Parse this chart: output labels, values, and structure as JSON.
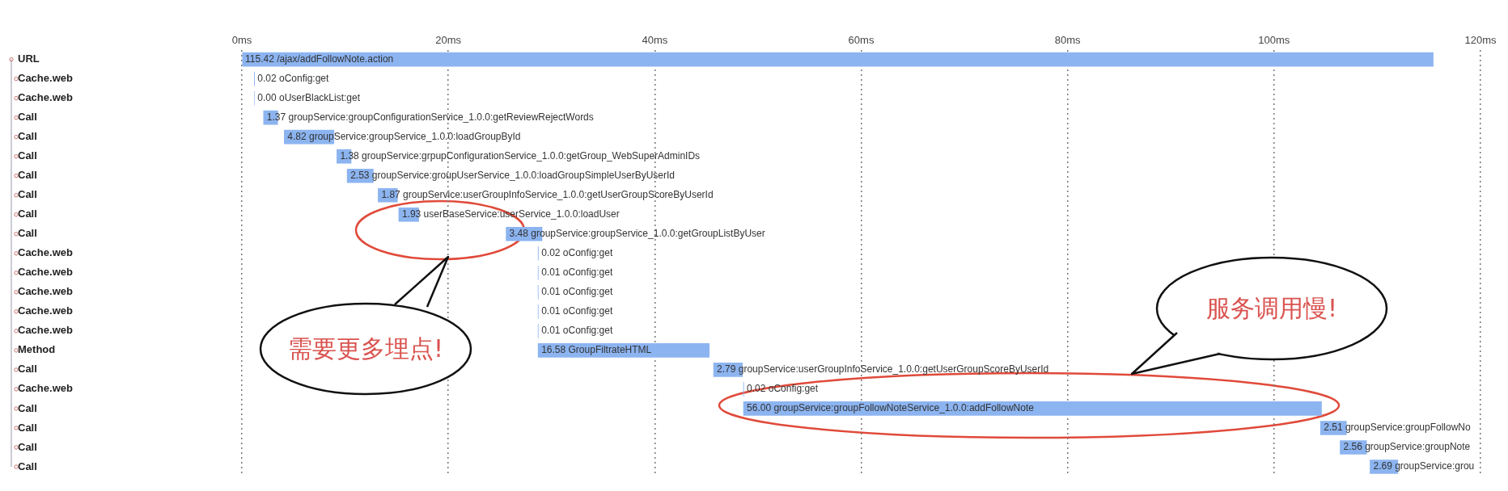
{
  "chart_data": {
    "type": "bar",
    "orientation": "horizontal",
    "color": "#8cb4f0",
    "grid": "x",
    "categories": [
      "URL",
      "Cache.web",
      "Cache.web",
      "Call",
      "Call",
      "Call",
      "Call",
      "Call",
      "Call",
      "Call",
      "Cache.web",
      "Cache.web",
      "Cache.web",
      "Cache.web",
      "Cache.web",
      "Method",
      "Call",
      "Cache.web",
      "Call",
      "Call",
      "Call",
      "Call"
    ],
    "base": [
      0,
      1.2,
      1.2,
      2.1,
      4.1,
      9.2,
      10.2,
      13.2,
      15.2,
      25.6,
      28.7,
      28.7,
      28.7,
      28.7,
      28.7,
      28.7,
      45.7,
      48.6,
      48.6,
      104.5,
      106.4,
      109.3
    ],
    "values": [
      115.42,
      0.02,
      0.0,
      1.37,
      4.82,
      1.38,
      2.53,
      1.87,
      1.93,
      3.48,
      0.02,
      0.01,
      0.01,
      0.01,
      0.01,
      16.58,
      2.79,
      0.02,
      56.0,
      2.51,
      2.56,
      2.69
    ],
    "value_labels": [
      "115.42 /ajax/addFollowNote.action",
      "0.02 oConfig:get",
      "0.00 oUserBlackList:get",
      "1.37 groupService:groupConfigurationService_1.0.0:getReviewRejectWords",
      "4.82 groupService:groupService_1.0.0:loadGroupById",
      "1.38 groupService:grpupConfigurationService_1.0.0:getGroup_WebSuperAdminIDs",
      "2.53 groupService:groupUserService_1.0.0:loadGroupSimpleUserByUserId",
      "1.87 groupService:userGroupInfoService_1.0.0:getUserGroupScoreByUserId",
      "1.93 userBaseService:userService_1.0.0:loadUser",
      "3.48 groupService:groupService_1.0.0:getGroupListByUser",
      "0.02 oConfig:get",
      "0.01 oConfig:get",
      "0.01 oConfig:get",
      "0.01 oConfig:get",
      "0.01 oConfig:get",
      "16.58 GroupFiltrateHTML",
      "2.79 groupService:userGroupInfoService_1.0.0:getUserGroupScoreByUserId",
      "0.02 oConfig:get",
      "56.00 groupService:groupFollowNoteService_1.0.0:addFollowNote",
      "2.51 groupService:groupFollowNo",
      "2.56 groupService:groupNote",
      "2.69 groupService:grou"
    ],
    "xlim": [
      0,
      120
    ],
    "xticks": [
      {
        "value": 0,
        "label": "0ms"
      },
      {
        "value": 20,
        "label": "20ms"
      },
      {
        "value": 40,
        "label": "40ms"
      },
      {
        "value": 60,
        "label": "60ms"
      },
      {
        "value": 80,
        "label": "80ms"
      },
      {
        "value": 100,
        "label": "100ms"
      },
      {
        "value": 120,
        "label": "120ms"
      }
    ],
    "annotations": [
      "需要更多埋点!",
      "服务调用慢!"
    ]
  }
}
